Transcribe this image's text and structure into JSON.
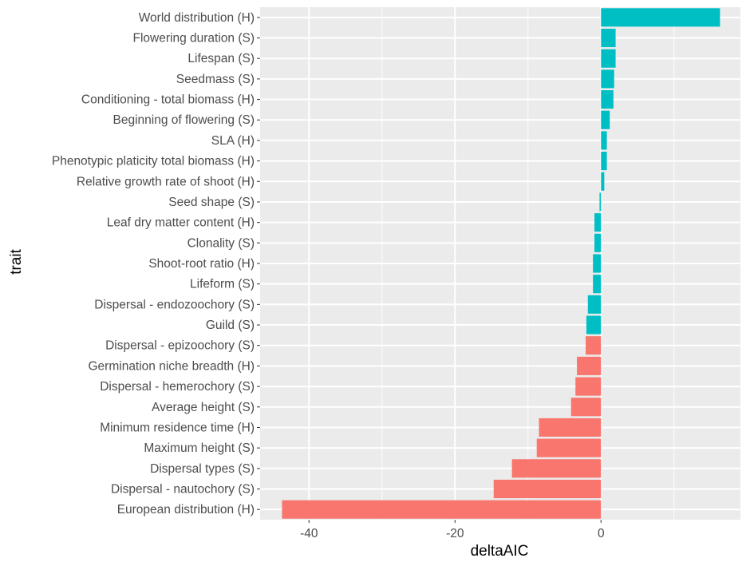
{
  "chart_data": {
    "type": "bar",
    "orientation": "horizontal",
    "title": "",
    "xlabel": "deltaAIC",
    "ylabel": "trait",
    "xlim": [
      -46.7,
      19.1
    ],
    "xticks": [
      -40,
      -20,
      0
    ],
    "xtick_labels": [
      "-40",
      "-20",
      "0"
    ],
    "minor_xgrid": [
      -30,
      -10,
      10
    ],
    "grid": true,
    "legend": "none",
    "categories": [
      "World distribution (H)",
      "Flowering duration (S)",
      "Lifespan (S)",
      "Seedmass (S)",
      "Conditioning - total biomass (H)",
      "Beginning of flowering (S)",
      "SLA (H)",
      "Phenotypic platicity total biomass (H)",
      "Relative growth rate of shoot (H)",
      "Seed shape (S)",
      "Leaf dry matter content (H)",
      "Clonality (S)",
      "Shoot-root ratio (H)",
      "Lifeform (S)",
      "Dispersal - endozoochory (S)",
      "Guild (S)",
      "Dispersal - epizoochory (S)",
      "Germination niche breadth (H)",
      "Dispersal - hemerochory (S)",
      "Average height (S)",
      "Minimum residence time (H)",
      "Maximum height (S)",
      "Dispersal types (S)",
      "Dispersal - nautochory (S)",
      "European distribution (H)"
    ],
    "values": [
      16.3,
      2.0,
      2.0,
      1.8,
      1.7,
      1.2,
      0.8,
      0.8,
      0.45,
      -0.2,
      -0.9,
      -0.9,
      -1.1,
      -1.1,
      -1.8,
      -2.0,
      -2.1,
      -3.3,
      -3.5,
      -4.1,
      -8.5,
      -8.8,
      -12.2,
      -14.7,
      -43.7
    ],
    "groups": [
      "cyan",
      "cyan",
      "cyan",
      "cyan",
      "cyan",
      "cyan",
      "cyan",
      "cyan",
      "cyan",
      "cyan",
      "cyan",
      "cyan",
      "cyan",
      "cyan",
      "cyan",
      "cyan",
      "red",
      "red",
      "red",
      "red",
      "red",
      "red",
      "red",
      "red",
      "red"
    ],
    "colors": {
      "cyan": "#00BFC4",
      "red": "#F8766D"
    },
    "panel_background": "#EBEBEB",
    "grid_color": "#FFFFFF"
  }
}
